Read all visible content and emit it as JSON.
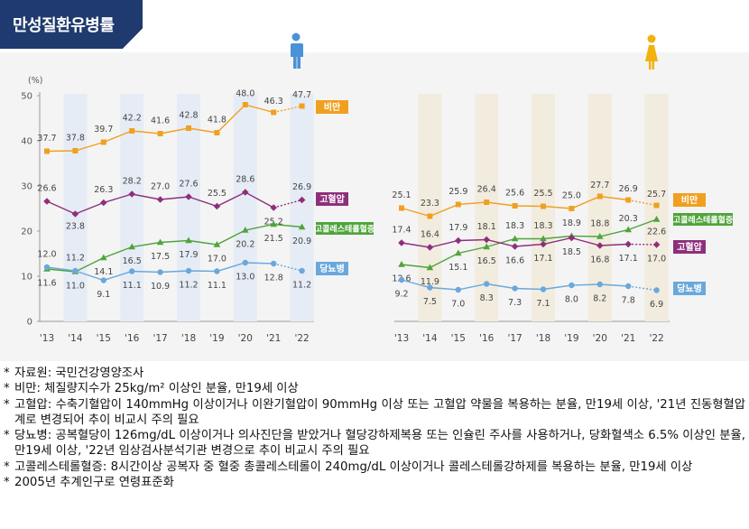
{
  "title": "만성질환유병률",
  "y_unit": "(%)",
  "colors": {
    "obesity": "#f0a020",
    "hypertension": "#8e2f7b",
    "hypercholesterolemia": "#4fa43b",
    "diabetes": "#6aa8dc",
    "male_band": "#e6ecf5",
    "female_band": "#f2ecdf",
    "male_icon": "#4a92d8",
    "female_icon": "#f2b10c",
    "title_bg": "#1f3a6e"
  },
  "icons": {
    "male": "male-figure-icon",
    "female": "female-figure-icon"
  },
  "chart_data": [
    {
      "type": "line",
      "panel": "male",
      "x": [
        "'13",
        "'14",
        "'15",
        "'16",
        "'17",
        "'18",
        "'19",
        "'20",
        "'21",
        "'22"
      ],
      "ylim": [
        0,
        50
      ],
      "yticks": [
        0,
        10,
        20,
        30,
        40,
        50
      ],
      "ylabel": "(%)",
      "series": [
        {
          "key": "obesity",
          "name": "비만",
          "labels": [
            "37.7",
            "37.8",
            "39.7",
            "42.2",
            "41.6",
            "42.8",
            "41.8",
            "48.0",
            "46.3",
            "47.7"
          ],
          "values": [
            37.7,
            37.8,
            39.7,
            42.2,
            41.6,
            42.8,
            41.8,
            48.0,
            46.3,
            47.7
          ]
        },
        {
          "key": "hypertension",
          "name": "고혈압",
          "labels": [
            "26.6",
            "23.8",
            "26.3",
            "28.2",
            "27.0",
            "27.6",
            "25.5",
            "28.6",
            "25.2",
            "26.9"
          ],
          "values": [
            26.6,
            23.8,
            26.3,
            28.2,
            27.0,
            27.6,
            25.5,
            28.6,
            25.2,
            26.9
          ]
        },
        {
          "key": "hypercholesterolemia",
          "name": "고콜레스테롤혈증",
          "labels": [
            "11.6",
            "11.0",
            "14.1",
            "16.5",
            "17.5",
            "17.9",
            "17.0",
            "20.2",
            "21.5",
            "20.9"
          ],
          "values": [
            11.6,
            11.0,
            14.1,
            16.5,
            17.5,
            17.9,
            17.0,
            20.2,
            21.5,
            20.9
          ]
        },
        {
          "key": "diabetes",
          "name": "당뇨병",
          "labels": [
            "12.0",
            "11.2",
            "9.1",
            "11.1",
            "10.9",
            "11.2",
            "11.1",
            "13.0",
            "12.8",
            "11.2"
          ],
          "values": [
            12.0,
            11.2,
            9.1,
            11.1,
            10.9,
            11.2,
            11.1,
            13.0,
            12.8,
            11.2
          ]
        }
      ]
    },
    {
      "type": "line",
      "panel": "female",
      "x": [
        "'13",
        "'14",
        "'15",
        "'16",
        "'17",
        "'18",
        "'19",
        "'20",
        "'21",
        "'22"
      ],
      "ylim": [
        0,
        50
      ],
      "series": [
        {
          "key": "obesity",
          "name": "비만",
          "labels": [
            "25.1",
            "23.3",
            "25.9",
            "26.4",
            "25.6",
            "25.5",
            "25.0",
            "27.7",
            "26.9",
            "25.7"
          ],
          "values": [
            25.1,
            23.3,
            25.9,
            26.4,
            25.6,
            25.5,
            25.0,
            27.7,
            26.9,
            25.7
          ]
        },
        {
          "key": "hypercholesterolemia",
          "name": "고콜레스테롤혈증",
          "labels": [
            "12.6",
            "11.9",
            "15.1",
            "16.5",
            "18.3",
            "18.3",
            "18.9",
            "18.8",
            "20.3",
            "22.6"
          ],
          "values": [
            12.6,
            11.9,
            15.1,
            16.5,
            18.3,
            18.3,
            18.9,
            18.8,
            20.3,
            22.6
          ]
        },
        {
          "key": "hypertension",
          "name": "고혈압",
          "labels": [
            "17.4",
            "16.4",
            "17.9",
            "18.1",
            "16.6",
            "17.1",
            "18.5",
            "16.8",
            "17.1",
            "17.0"
          ],
          "values": [
            17.4,
            16.4,
            17.9,
            18.1,
            16.6,
            17.1,
            18.5,
            16.8,
            17.1,
            17.0
          ]
        },
        {
          "key": "diabetes",
          "name": "당뇨병",
          "labels": [
            "9.2",
            "7.5",
            "7.0",
            "8.3",
            "7.3",
            "7.1",
            "8.0",
            "8.2",
            "7.8",
            "6.9"
          ],
          "values": [
            9.2,
            7.5,
            7.0,
            8.3,
            7.3,
            7.1,
            8.0,
            8.2,
            7.8,
            6.9
          ]
        }
      ]
    }
  ],
  "notes": [
    "자료원: 국민건강영양조사",
    "비만: 체질량지수가 25kg/m² 이상인 분율, 만19세 이상",
    "고혈압: 수축기혈압이 140mmHg 이상이거나 이완기혈압이 90mmHg 이상 또는 고혈압 약물을 복용하는 분율, 만19세 이상, '21년 진동형혈압계로 변경되어 추이 비교시 주의 필요",
    "당뇨병: 공복혈당이 126mg/dL 이상이거나 의사진단을 받았거나 혈당강하제복용 또는 인슐린 주사를 사용하거나, 당화혈색소 6.5% 이상인 분율, 만19세 이상, '22년 임상검사분석기관 변경으로 추이 비교시 주의 필요",
    "고콜레스테롤혈증: 8시간이상 공복자 중 혈중 총콜레스테롤이 240mg/dL 이상이거나 콜레스테롤강하제를 복용하는 분율, 만19세 이상",
    "2005년 추계인구로 연령표준화"
  ]
}
